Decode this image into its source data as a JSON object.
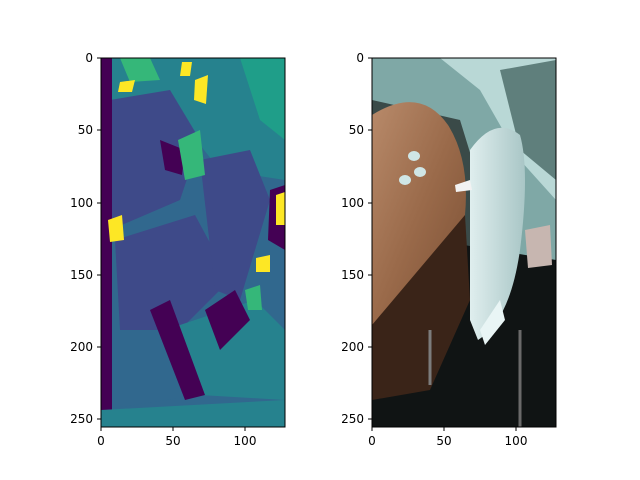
{
  "chart_data": [
    {
      "type": "heatmap",
      "title": "",
      "xlabel": "",
      "ylabel": "",
      "xlim": [
        0,
        128
      ],
      "ylim": [
        256,
        0
      ],
      "x_ticks": [
        "0",
        "50",
        "100"
      ],
      "y_ticks": [
        "0",
        "50",
        "100",
        "150",
        "200",
        "250"
      ],
      "x_tick_values": [
        0,
        50,
        100
      ],
      "y_tick_values": [
        0,
        50,
        100,
        150,
        200,
        250
      ],
      "grid": false,
      "colormap": "viridis",
      "palette": [
        "#440154",
        "#3e4a89",
        "#31688e",
        "#26828e",
        "#1f9e89",
        "#35b779",
        "#b5de2b",
        "#fde725"
      ]
    },
    {
      "type": "image",
      "title": "",
      "xlabel": "",
      "ylabel": "",
      "xlim": [
        0,
        128
      ],
      "ylim": [
        256,
        0
      ],
      "x_ticks": [
        "0",
        "50",
        "100"
      ],
      "y_ticks": [
        "0",
        "50",
        "100",
        "150",
        "200",
        "250"
      ],
      "x_tick_values": [
        0,
        50,
        100
      ],
      "y_tick_values": [
        0,
        50,
        100,
        150,
        200,
        250
      ],
      "grid": false,
      "palette": [
        "#8b5a3c",
        "#b08060",
        "#2f3a3a",
        "#9ec9c9",
        "#e8f4f4",
        "#101010"
      ]
    }
  ]
}
